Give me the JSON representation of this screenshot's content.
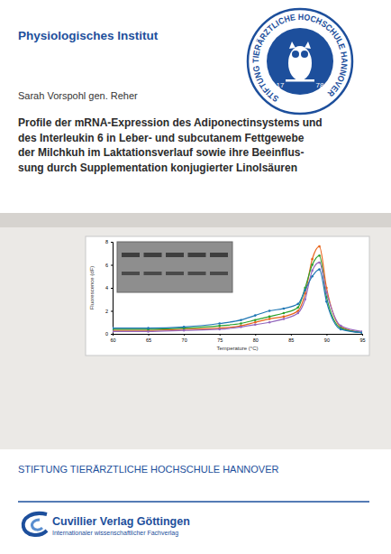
{
  "header": {
    "institute": "Physiologisches Institut",
    "seal": {
      "text": "STIFTUNG TIERÄRZTLICHE HOCHSCHULE HANNOVER",
      "year_left": "17",
      "year_right": "78"
    }
  },
  "author": "Sarah Vorspohl gen. Reher",
  "title_lines": [
    "Profile der mRNA-Expression des Adiponectinsystems und",
    "des Interleukin 6 in Leber- und subcutanem Fettgewebe",
    "der Milchkuh im Laktationsverlauf sowie ihre Beeinflus-",
    "sung durch Supplementation konjugierter Linolsäuren"
  ],
  "chart_data": {
    "type": "line",
    "xlabel": "Temperature (°C)",
    "ylabel": "Fluorescence (dF)",
    "x": [
      60,
      65,
      70,
      75,
      78,
      80,
      82,
      84,
      86,
      87,
      88,
      89,
      90,
      92,
      95
    ],
    "series": [
      {
        "color": "#e8641b",
        "values": [
          0.3,
          0.3,
          0.4,
          0.5,
          0.7,
          1.0,
          1.3,
          1.5,
          2.0,
          3.5,
          6.5,
          7.6,
          4.0,
          0.6,
          0.1
        ]
      },
      {
        "color": "#2ca02c",
        "values": [
          0.4,
          0.4,
          0.5,
          0.7,
          0.9,
          1.2,
          1.5,
          1.8,
          2.3,
          4.0,
          6.0,
          6.8,
          3.2,
          0.5,
          0.1
        ]
      },
      {
        "color": "#9467bd",
        "values": [
          0.2,
          0.2,
          0.3,
          0.4,
          0.6,
          0.8,
          1.0,
          1.3,
          1.8,
          3.0,
          5.5,
          6.2,
          3.6,
          0.7,
          0.2
        ]
      },
      {
        "color": "#1f77b4",
        "values": [
          0.5,
          0.5,
          0.6,
          0.9,
          1.2,
          1.6,
          2.0,
          2.2,
          2.6,
          3.8,
          5.0,
          5.6,
          2.8,
          0.4,
          0.1
        ]
      }
    ],
    "xlim": [
      60,
      95
    ],
    "xticks": [
      60,
      65,
      70,
      75,
      80,
      85,
      90,
      95
    ],
    "ylim": [
      0,
      8
    ],
    "yticks": [
      0,
      2,
      4,
      6,
      8
    ],
    "grid": false
  },
  "footer": {
    "foundation": "STIFTUNG TIERÄRZTLICHE HOCHSCHULE HANNOVER",
    "publisher": "Cuvillier Verlag Göttingen",
    "publisher_tagline": "Internationaler wissenschaftlicher Fachverlag"
  }
}
